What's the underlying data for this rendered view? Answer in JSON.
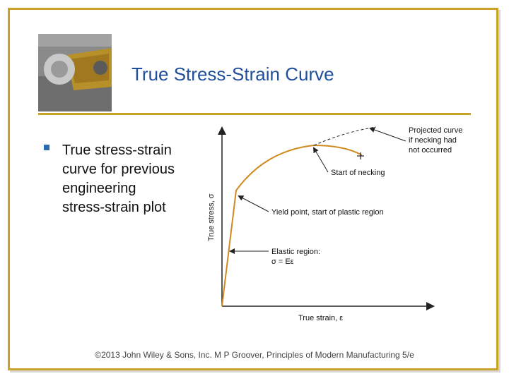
{
  "slide": {
    "title": "True Stress-Strain Curve",
    "bullet": "True stress‑strain curve for previous engineering stress‑strain plot",
    "credit": "©2013 John Wiley & Sons, Inc.  M P Groover, Principles of Modern Manufacturing 5/e",
    "accent_color": "#c9a227",
    "title_color": "#1f4e9a"
  },
  "figure": {
    "y_axis_label": "True stress, σ",
    "x_axis_label": "True strain, ε",
    "annotations": {
      "projected": [
        "Projected curve",
        "if necking had",
        "not occurred"
      ],
      "necking": "Start of necking",
      "yield": "Yield point, start of plastic region",
      "elastic_line1": "Elastic region:",
      "elastic_line2": "σ = Eε"
    }
  }
}
